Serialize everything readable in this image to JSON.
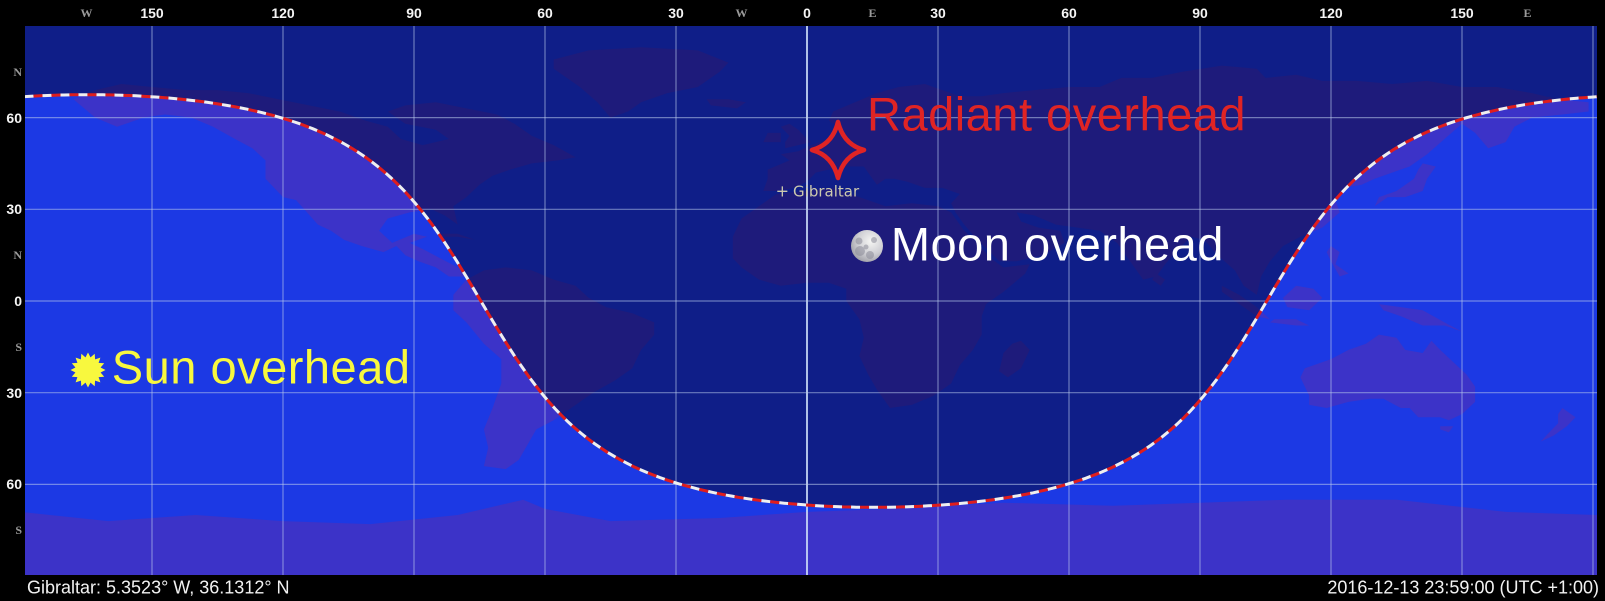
{
  "status_bar": {
    "left": "Gibraltar: 5.3523° W, 36.1312° N",
    "right": "2016-12-13 23:59:00 (UTC +1:00)"
  },
  "axes": {
    "top": [
      {
        "text": "W",
        "kind": "hemi",
        "lon": -165
      },
      {
        "text": "150",
        "kind": "num",
        "lon": -150
      },
      {
        "text": "120",
        "kind": "num",
        "lon": -120
      },
      {
        "text": "90",
        "kind": "num",
        "lon": -90
      },
      {
        "text": "60",
        "kind": "num",
        "lon": -60
      },
      {
        "text": "30",
        "kind": "num",
        "lon": -30
      },
      {
        "text": "W",
        "kind": "hemi",
        "lon": -15
      },
      {
        "text": "0",
        "kind": "num",
        "lon": 0
      },
      {
        "text": "E",
        "kind": "hemi",
        "lon": 15
      },
      {
        "text": "30",
        "kind": "num",
        "lon": 30
      },
      {
        "text": "60",
        "kind": "num",
        "lon": 60
      },
      {
        "text": "90",
        "kind": "num",
        "lon": 90
      },
      {
        "text": "120",
        "kind": "num",
        "lon": 120
      },
      {
        "text": "150",
        "kind": "num",
        "lon": 150
      },
      {
        "text": "E",
        "kind": "hemi",
        "lon": 165
      }
    ],
    "left": [
      {
        "text": "N",
        "kind": "hemi",
        "lat": 75
      },
      {
        "text": "60",
        "kind": "num",
        "lat": 60
      },
      {
        "text": "30",
        "kind": "num",
        "lat": 30
      },
      {
        "text": "N",
        "kind": "hemi",
        "lat": 15
      },
      {
        "text": "0",
        "kind": "num",
        "lat": 0
      },
      {
        "text": "S",
        "kind": "hemi",
        "lat": -15
      },
      {
        "text": "30",
        "kind": "num",
        "lat": -30
      },
      {
        "text": "60",
        "kind": "num",
        "lat": -60
      },
      {
        "text": "S",
        "kind": "hemi",
        "lat": -75
      }
    ]
  },
  "markers": {
    "sun": {
      "label": "Sun overhead",
      "lon": -164.7,
      "lat": -22.5,
      "color": "#f8f83e"
    },
    "moon": {
      "label": "Moon overhead",
      "lon": 13.7,
      "lat": 18.0,
      "color": "#ffffff"
    },
    "radiant": {
      "label": "Radiant overhead",
      "lon": 7.1,
      "lat": 49.4,
      "color": "#e02424"
    },
    "observer": {
      "glyph": "+",
      "label": "Gibraltar",
      "lon": -5.3523,
      "lat": 36.1312,
      "color": "#ccc9ae"
    }
  },
  "map_data": {
    "type": "world-day-night-map",
    "projection": "equirectangular",
    "grid_step_deg": 30,
    "palette": {
      "day_ocean": "#1c39e4",
      "day_land": "#3c33c8",
      "night_shade": "rgba(3,6,52,0.52)",
      "terminator_red": "#e01d1d",
      "terminator_white": "#efefef",
      "gridline": "rgba(185,203,235,0.55)"
    }
  }
}
